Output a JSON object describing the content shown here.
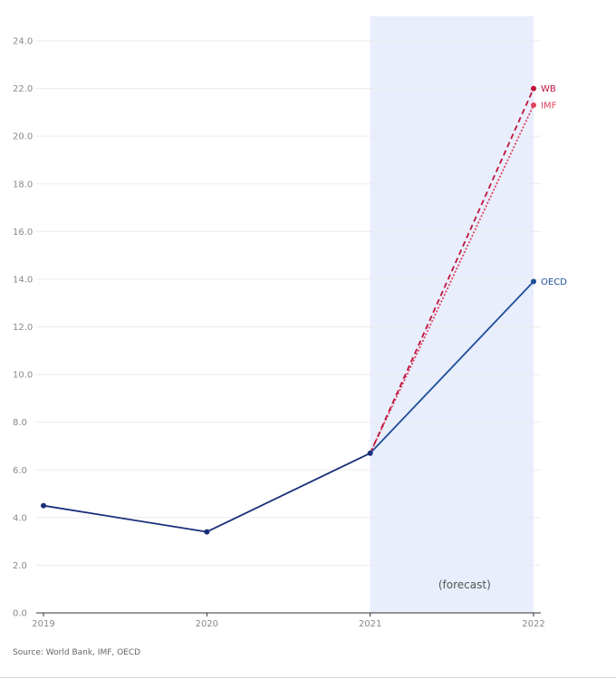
{
  "chart_data": {
    "type": "line",
    "x": [
      2019,
      2020,
      2021,
      2022
    ],
    "xlim": [
      2019,
      2022
    ],
    "ylim": [
      0,
      24
    ],
    "y_ticks": [
      0,
      2,
      4,
      6,
      8,
      10,
      12,
      14,
      16,
      18,
      20,
      22,
      24
    ],
    "y_tick_labels": [
      "0.0",
      "2.0",
      "4.0",
      "6.0",
      "8.0",
      "10.0",
      "12.0",
      "14.0",
      "16.0",
      "18.0",
      "20.0",
      "22.0",
      "24.0"
    ],
    "x_tick_labels": [
      "2019",
      "2020",
      "2021",
      "2022"
    ],
    "grid": "horizontal",
    "forecast_region": [
      2021,
      2022
    ],
    "forecast_label": "(forecast)",
    "series": [
      {
        "name": "OECD",
        "color": "#1f4e9a",
        "style": "solid",
        "x": [
          2019,
          2020,
          2021,
          2022
        ],
        "values": [
          4.5,
          3.4,
          6.7,
          13.9
        ]
      },
      {
        "name": "WB",
        "color": "#c0143c",
        "style": "dashed",
        "x": [
          2021,
          2022
        ],
        "values": [
          6.7,
          22.0
        ]
      },
      {
        "name": "IMF",
        "color": "#e0405a",
        "style": "dotted",
        "x": [
          2021,
          2022
        ],
        "values": [
          6.7,
          21.3
        ]
      }
    ],
    "historical_color": "#1a2f7a"
  },
  "source_text": "Source: World Bank, IMF, OECD"
}
